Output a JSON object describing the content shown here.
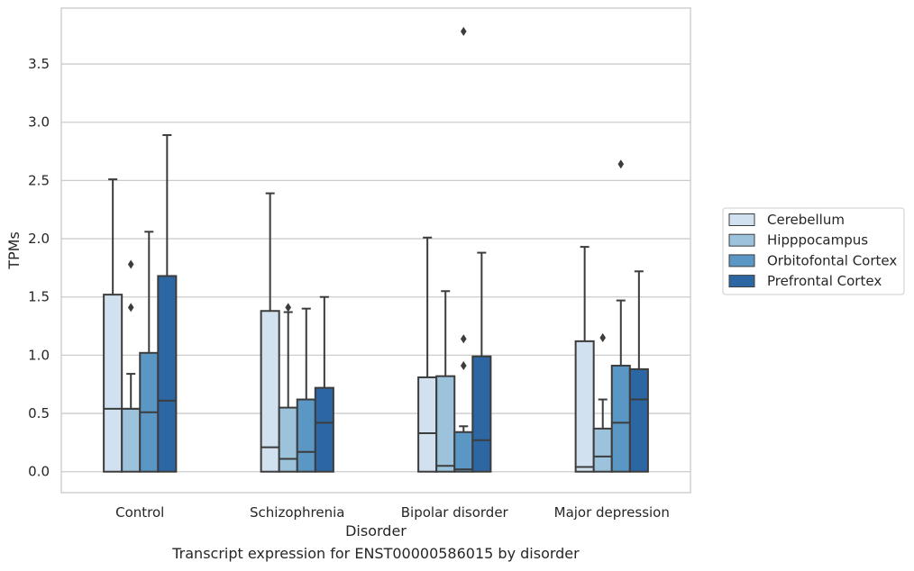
{
  "caption": "Transcript expression for ENST00000586015 by disorder",
  "chart_data": {
    "type": "box",
    "xlabel": "Disorder",
    "ylabel": "TPMs",
    "ylim": [
      -0.18,
      3.98
    ],
    "yticks": [
      0.0,
      0.5,
      1.0,
      1.5,
      2.0,
      2.5,
      3.0,
      3.5
    ],
    "ytick_labels": [
      "0.0",
      "0.5",
      "1.0",
      "1.5",
      "2.0",
      "2.5",
      "3.0",
      "3.5"
    ],
    "grid": "horizontal",
    "legend_position": "right",
    "categories": [
      "Control",
      "Schizophrenia",
      "Bipolar disorder",
      "Major depression"
    ],
    "series": [
      {
        "name": "Cerebellum",
        "color": "#d1e1f0",
        "boxes": [
          {
            "min": 0.0,
            "q1": 0.0,
            "median": 0.54,
            "q3": 1.52,
            "max": 2.51,
            "outliers": []
          },
          {
            "min": 0.0,
            "q1": 0.0,
            "median": 0.21,
            "q3": 1.38,
            "max": 2.39,
            "outliers": []
          },
          {
            "min": 0.0,
            "q1": 0.0,
            "median": 0.33,
            "q3": 0.81,
            "max": 2.01,
            "outliers": []
          },
          {
            "min": 0.0,
            "q1": 0.0,
            "median": 0.04,
            "q3": 1.12,
            "max": 1.93,
            "outliers": []
          }
        ]
      },
      {
        "name": "Hipppocampus",
        "color": "#9dc3dc",
        "boxes": [
          {
            "min": 0.0,
            "q1": 0.0,
            "median": 0.54,
            "q3": 0.54,
            "max": 0.84,
            "outliers": [
              1.41,
              1.78
            ]
          },
          {
            "min": 0.0,
            "q1": 0.0,
            "median": 0.11,
            "q3": 0.55,
            "max": 1.37,
            "outliers": [
              1.41
            ]
          },
          {
            "min": 0.0,
            "q1": 0.0,
            "median": 0.05,
            "q3": 0.82,
            "max": 1.55,
            "outliers": []
          },
          {
            "min": 0.0,
            "q1": 0.0,
            "median": 0.13,
            "q3": 0.37,
            "max": 0.62,
            "outliers": [
              1.15
            ]
          }
        ]
      },
      {
        "name": "Orbitofontal Cortex",
        "color": "#5b97c5",
        "boxes": [
          {
            "min": 0.0,
            "q1": 0.0,
            "median": 0.51,
            "q3": 1.02,
            "max": 2.06,
            "outliers": []
          },
          {
            "min": 0.0,
            "q1": 0.0,
            "median": 0.17,
            "q3": 0.62,
            "max": 1.4,
            "outliers": []
          },
          {
            "min": 0.0,
            "q1": 0.0,
            "median": 0.02,
            "q3": 0.34,
            "max": 0.39,
            "outliers": [
              0.91,
              1.14,
              3.78
            ]
          },
          {
            "min": 0.0,
            "q1": 0.0,
            "median": 0.42,
            "q3": 0.91,
            "max": 1.47,
            "outliers": [
              2.64
            ]
          }
        ]
      },
      {
        "name": "Prefrontal Cortex",
        "color": "#2c67a4",
        "boxes": [
          {
            "min": 0.0,
            "q1": 0.0,
            "median": 0.61,
            "q3": 1.68,
            "max": 2.89,
            "outliers": []
          },
          {
            "min": 0.0,
            "q1": 0.0,
            "median": 0.42,
            "q3": 0.72,
            "max": 1.5,
            "outliers": []
          },
          {
            "min": 0.0,
            "q1": 0.0,
            "median": 0.27,
            "q3": 0.99,
            "max": 1.88,
            "outliers": []
          },
          {
            "min": 0.0,
            "q1": 0.0,
            "median": 0.62,
            "q3": 0.88,
            "max": 1.72,
            "outliers": []
          }
        ]
      }
    ]
  }
}
